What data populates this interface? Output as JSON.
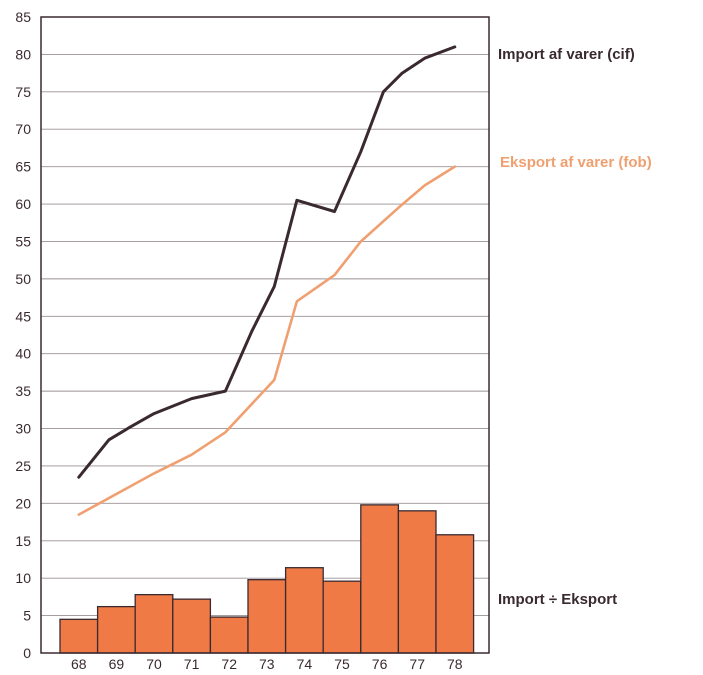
{
  "chart_data": {
    "type": "line+bar",
    "title": "",
    "xlabel": "",
    "ylabel": "",
    "ylim": [
      0,
      85
    ],
    "y_ticks": [
      0,
      5,
      10,
      15,
      20,
      25,
      30,
      35,
      40,
      45,
      50,
      55,
      60,
      65,
      70,
      75,
      80,
      85
    ],
    "grid": true,
    "categories": [
      "68",
      "69",
      "70",
      "71",
      "72",
      "73",
      "74",
      "75",
      "76",
      "77",
      "78"
    ],
    "line_series": [
      {
        "name": "Import af varer (cif)",
        "color": "#3a2a30",
        "x": [
          1968.0,
          1968.8,
          1969.3,
          1970.0,
          1971.0,
          1971.9,
          1972.6,
          1973.2,
          1973.8,
          1974.8,
          1975.5,
          1976.1,
          1976.6,
          1977.2,
          1978.0
        ],
        "values": [
          23.5,
          28.5,
          30.0,
          32.0,
          34.0,
          35.0,
          43.0,
          49.0,
          60.5,
          59.0,
          67.0,
          75.0,
          77.5,
          79.5,
          81.0
        ]
      },
      {
        "name": "Eksport af varer (fob)",
        "color": "#f0a070",
        "x": [
          1968.0,
          1970.0,
          1971.0,
          1971.9,
          1973.2,
          1973.8,
          1974.8,
          1975.5,
          1976.5,
          1977.2,
          1978.0
        ],
        "values": [
          18.5,
          24.0,
          26.5,
          29.5,
          36.5,
          47.0,
          50.5,
          55.0,
          59.5,
          62.5,
          65.0
        ]
      }
    ],
    "bar_series": {
      "name": "Import ÷ Eksport",
      "color": "#f07a45",
      "values": [
        4.5,
        6.2,
        7.8,
        7.2,
        4.8,
        9.8,
        11.4,
        9.6,
        19.8,
        19.0,
        15.8
      ]
    }
  }
}
